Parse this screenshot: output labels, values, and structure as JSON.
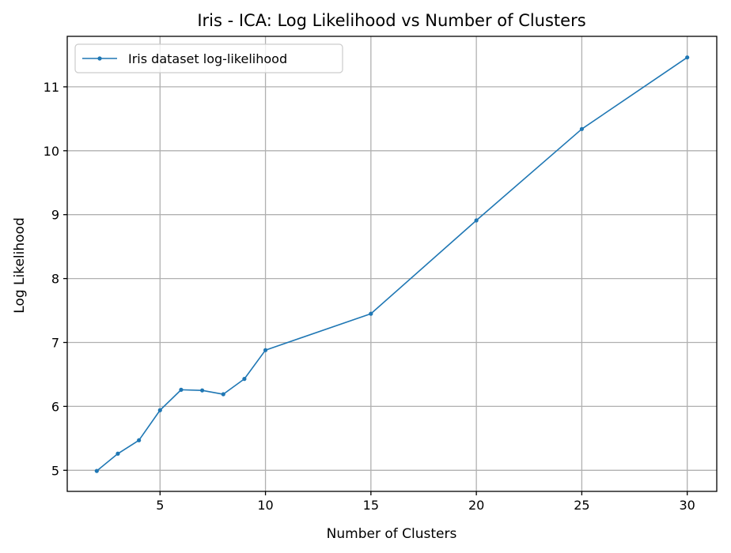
{
  "chart_data": {
    "type": "line",
    "title": "Iris - ICA: Log Likelihood vs Number of Clusters",
    "xlabel": "Number of Clusters",
    "ylabel": "Log Likelihood",
    "xlim": [
      0.6,
      31.4
    ],
    "ylim": [
      4.67,
      11.79
    ],
    "xticks": [
      5,
      10,
      15,
      20,
      25,
      30
    ],
    "yticks": [
      5,
      6,
      7,
      8,
      9,
      10,
      11
    ],
    "grid": true,
    "legend_position": "top-left",
    "series": [
      {
        "name": "Iris dataset log-likelihood",
        "color": "#1f77b4",
        "marker": "dot",
        "x": [
          2,
          3,
          4,
          5,
          6,
          7,
          8,
          9,
          10,
          15,
          20,
          25,
          30
        ],
        "y": [
          4.99,
          5.26,
          5.47,
          5.94,
          6.26,
          6.25,
          6.19,
          6.43,
          6.88,
          7.45,
          8.91,
          10.34,
          11.46
        ]
      }
    ]
  }
}
